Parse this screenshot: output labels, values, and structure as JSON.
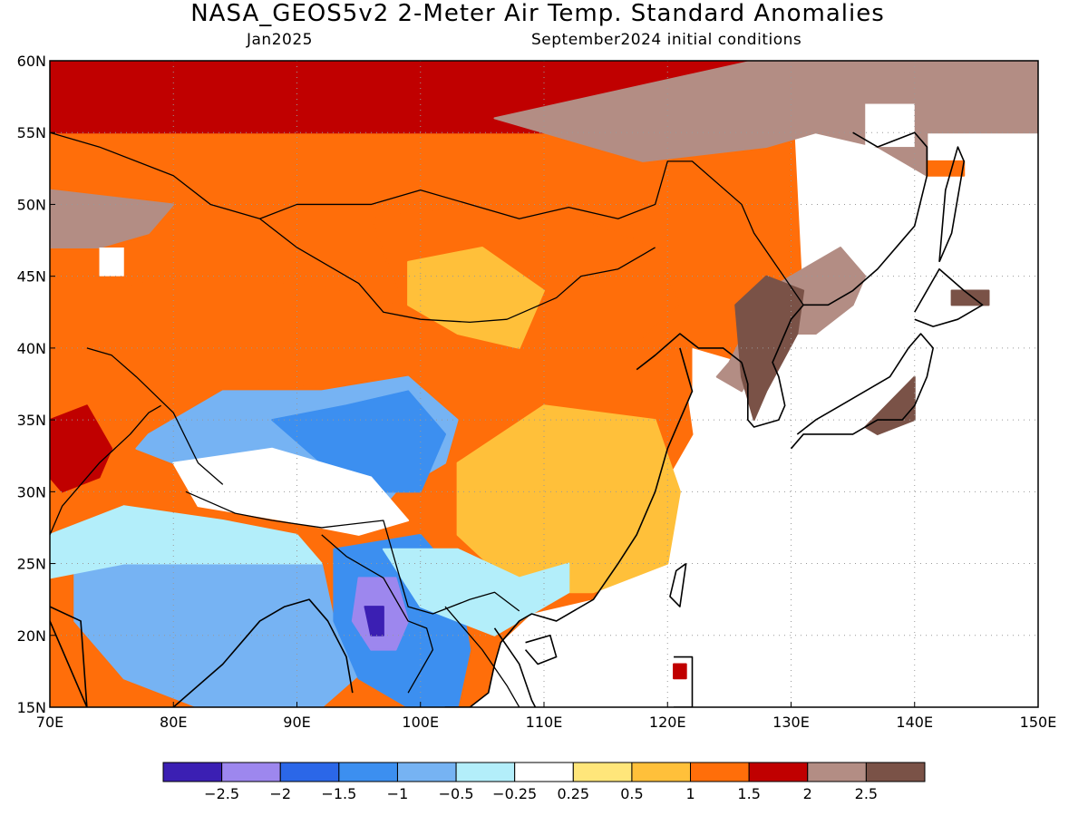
{
  "title": "NASA_GEOS5v2 2-Meter Air Temp. Standard Anomalies",
  "subtitle_left": "Jan2025",
  "subtitle_right": "September2024 initial conditions",
  "map": {
    "lon_range": [
      70,
      150
    ],
    "lat_range": [
      15,
      60
    ],
    "lon_ticks": [
      "70E",
      "80E",
      "90E",
      "100E",
      "110E",
      "120E",
      "130E",
      "140E",
      "150E"
    ],
    "lat_ticks": [
      "15N",
      "20N",
      "25N",
      "30N",
      "35N",
      "40N",
      "45N",
      "50N",
      "55N",
      "60N"
    ],
    "grid": true
  },
  "colorbar": {
    "colors": [
      "#3b1fb3",
      "#9d87ee",
      "#2b67e8",
      "#3c8ff0",
      "#76b3f3",
      "#b3eefa",
      "#ffffff",
      "#ffe67a",
      "#ffc03a",
      "#ff6e0a",
      "#c00000",
      "#b38d84",
      "#7a5247"
    ],
    "labels": [
      "-2.5",
      "-2",
      "-1.5",
      "-1",
      "-0.5",
      "-0.25",
      "0.25",
      "0.5",
      "1",
      "1.5",
      "2",
      "2.5"
    ]
  },
  "regions": [
    {
      "name": "far-north-warm",
      "cat": 10,
      "lon": [
        70,
        130,
        127,
        126,
        110,
        95,
        88,
        80,
        78,
        70
      ],
      "lat": [
        60,
        60,
        57.5,
        56,
        55,
        55,
        55,
        55,
        55,
        55
      ]
    },
    {
      "name": "northwest-cold-brown",
      "cat": 11,
      "lon": [
        70,
        80,
        78,
        74,
        70
      ],
      "lat": [
        51,
        50,
        48,
        47,
        47
      ]
    },
    {
      "name": "ne-brown-plateau",
      "cat": 11,
      "lon": [
        106,
        127,
        150,
        150,
        144,
        141,
        141,
        137,
        132,
        128,
        118
      ],
      "lat": [
        56,
        60,
        60,
        55,
        55,
        55,
        52,
        54,
        55,
        54,
        53
      ]
    },
    {
      "name": "manchuria-brown",
      "cat": 11,
      "lon": [
        125,
        128,
        134,
        136,
        135,
        132,
        129,
        126,
        124
      ],
      "lat": [
        39,
        44,
        47,
        45,
        43,
        41,
        41,
        37,
        38
      ]
    },
    {
      "name": "korea-dark-brown",
      "cat": 12,
      "lon": [
        125.5,
        128,
        131,
        130.5,
        128,
        127,
        126
      ],
      "lat": [
        43,
        45,
        44,
        41,
        37,
        35,
        38
      ]
    },
    {
      "name": "japan-dark-brown",
      "cat": 12,
      "lon": [
        136,
        140,
        140,
        137
      ],
      "lat": [
        34.5,
        38,
        35,
        34
      ]
    },
    {
      "name": "mongolia-orange",
      "cat": 9,
      "lon": [
        96,
        104,
        113,
        119,
        121,
        117,
        112,
        105,
        99
      ],
      "lat": [
        49,
        50,
        49,
        47,
        43,
        40,
        38,
        39,
        42
      ]
    },
    {
      "name": "central-asia-orange",
      "cat": 9,
      "lon": [
        70,
        85,
        94,
        103,
        108,
        112,
        112,
        103,
        94,
        86,
        78,
        72,
        70
      ],
      "lat": [
        44,
        45,
        44,
        42,
        44,
        41,
        36,
        35,
        37,
        38,
        38,
        38,
        38
      ]
    },
    {
      "name": "east-china-orange",
      "cat": 9,
      "lon": [
        110,
        121,
        122,
        120,
        117,
        113,
        110
      ],
      "lat": [
        40,
        40,
        34,
        31,
        30,
        30,
        33
      ]
    },
    {
      "name": "south-china-yellow",
      "cat": 8,
      "lon": [
        103,
        110,
        119,
        121,
        120,
        114,
        108,
        103
      ],
      "lat": [
        32,
        36,
        35,
        30,
        25,
        23,
        23,
        27
      ]
    },
    {
      "name": "mongolia-light",
      "cat": 8,
      "lon": [
        99,
        105,
        110,
        108,
        103,
        99
      ],
      "lat": [
        46,
        47,
        44,
        40,
        41,
        43
      ]
    },
    {
      "name": "tibet-cold",
      "cat": 4,
      "lon": [
        78,
        84,
        92,
        99,
        103,
        102,
        98,
        96,
        91,
        86,
        80,
        77
      ],
      "lat": [
        34,
        37,
        37,
        38,
        35,
        32,
        30,
        28,
        29,
        31,
        32,
        33
      ]
    },
    {
      "name": "tibet-deep-cold",
      "cat": 3,
      "lon": [
        88,
        94,
        99,
        102,
        100,
        96,
        92
      ],
      "lat": [
        35,
        36,
        37,
        34,
        30,
        30,
        32
      ]
    },
    {
      "name": "himalaya-white",
      "cat": 6,
      "lon": [
        80,
        88,
        96,
        99,
        95,
        89,
        82
      ],
      "lat": [
        32,
        33,
        31,
        28,
        27,
        28,
        29
      ]
    },
    {
      "name": "india-cold",
      "cat": 4,
      "lon": [
        72,
        80,
        88,
        92,
        93,
        96,
        92,
        88,
        82,
        76,
        72
      ],
      "lat": [
        25,
        27,
        27,
        25,
        21,
        18,
        15,
        15,
        15,
        17,
        21
      ]
    },
    {
      "name": "india-light",
      "cat": 5,
      "lon": [
        70,
        76,
        84,
        90,
        92,
        82,
        76,
        70
      ],
      "lat": [
        27,
        29,
        28,
        27,
        25,
        25,
        25,
        24
      ]
    },
    {
      "name": "se-asia-cold",
      "cat": 3,
      "lon": [
        93,
        100,
        103,
        104,
        103,
        99,
        95,
        93
      ],
      "lat": [
        26,
        27,
        24,
        19,
        15,
        15,
        17,
        21
      ]
    },
    {
      "name": "myanmar-violet",
      "cat": 1,
      "lon": [
        95,
        98,
        99,
        98,
        96,
        94.5
      ],
      "lat": [
        24,
        24,
        21,
        19,
        19,
        21
      ]
    },
    {
      "name": "myanmar-indigo",
      "cat": 0,
      "lon": [
        95.5,
        97,
        97,
        96
      ],
      "lat": [
        22,
        22,
        20,
        20
      ]
    },
    {
      "name": "south-lightblue",
      "cat": 5,
      "lon": [
        97,
        103,
        108,
        112,
        112,
        106,
        100
      ],
      "lat": [
        26,
        26,
        24,
        25,
        23,
        20,
        22
      ]
    },
    {
      "name": "pakistan-red",
      "cat": 10,
      "lon": [
        70,
        73,
        75,
        74,
        71,
        70
      ],
      "lat": [
        35,
        36,
        33,
        31,
        30,
        31
      ]
    },
    {
      "name": "taiwan-red",
      "cat": 10,
      "lon": [
        120.5,
        121.5,
        121.5,
        120.5
      ],
      "lat": [
        18,
        18,
        17,
        17
      ]
    },
    {
      "name": "sakhalin-orange",
      "cat": 9,
      "lon": [
        141,
        144,
        144,
        141
      ],
      "lat": [
        53,
        53,
        52,
        52
      ]
    },
    {
      "name": "hokkaido-brown",
      "cat": 12,
      "lon": [
        143,
        146,
        146,
        143
      ],
      "lat": [
        44,
        44,
        43,
        43
      ]
    }
  ],
  "no_data_boxes": [
    {
      "name": "nodata-lake-balkhash",
      "lon": [
        74,
        76
      ],
      "lat": [
        45,
        47
      ]
    },
    {
      "name": "nodata-manchuria",
      "lon": [
        136,
        140
      ],
      "lat": [
        54,
        57
      ]
    }
  ],
  "coastlines": [
    {
      "name": "china-coast",
      "lon": [
        121,
        122,
        121,
        120,
        119,
        117.5,
        116,
        114,
        111,
        109,
        108,
        106.5,
        106,
        105.5,
        104
      ],
      "lat": [
        40,
        37,
        35,
        33,
        30,
        27,
        25,
        22.5,
        21,
        21.5,
        21,
        19.5,
        18,
        16,
        15
      ]
    },
    {
      "name": "bohai-coast",
      "lon": [
        117.5,
        119,
        121,
        122.5,
        124.5,
        126
      ],
      "lat": [
        38.5,
        39.5,
        41,
        40,
        40,
        39
      ]
    },
    {
      "name": "korea-coast",
      "lon": [
        126,
        126.5,
        126.5,
        127,
        129,
        129.5,
        129,
        128.5,
        130,
        131
      ],
      "lat": [
        39,
        37.5,
        35,
        34.5,
        35,
        36,
        38,
        39,
        42,
        43
      ]
    },
    {
      "name": "russia-coast",
      "lon": [
        131,
        133,
        135,
        137,
        139,
        140,
        141,
        141,
        140,
        137,
        135
      ],
      "lat": [
        43,
        43,
        44,
        45.5,
        47.5,
        48.5,
        52,
        54,
        55,
        54,
        55
      ]
    },
    {
      "name": "honshu",
      "lon": [
        130,
        131,
        133,
        135,
        137,
        139,
        140,
        141,
        141.5,
        140.5,
        139.5,
        138,
        136,
        134,
        132,
        130.5
      ],
      "lat": [
        33,
        34,
        34,
        34,
        35,
        35,
        36,
        38,
        40,
        41,
        40,
        38,
        37,
        36,
        35,
        34
      ]
    },
    {
      "name": "hokkaido",
      "lon": [
        140,
        141.5,
        143.5,
        145.5,
        144,
        142,
        140
      ],
      "lat": [
        42,
        41.5,
        42,
        43,
        44,
        45.5,
        42.5
      ]
    },
    {
      "name": "sakhalin",
      "lon": [
        142,
        143,
        144,
        143.5,
        142.5,
        142
      ],
      "lat": [
        46,
        48,
        53,
        54,
        51,
        46
      ]
    },
    {
      "name": "taiwan",
      "lon": [
        121.5,
        121,
        120.2,
        120.7,
        121.5
      ],
      "lat": [
        25,
        22,
        22.7,
        24.5,
        25
      ]
    },
    {
      "name": "hainan",
      "lon": [
        108.5,
        110.5,
        111,
        109.5,
        108.5
      ],
      "lat": [
        19.5,
        20,
        18.5,
        18,
        19
      ]
    },
    {
      "name": "luzon",
      "lon": [
        120.5,
        122,
        122,
        120.5
      ],
      "lat": [
        18.5,
        18.5,
        15,
        15
      ]
    },
    {
      "name": "india-west",
      "lon": [
        70,
        72.5,
        73,
        70
      ],
      "lat": [
        22,
        21,
        15,
        21
      ]
    },
    {
      "name": "bay-of-bengal",
      "lon": [
        80,
        84,
        87,
        89,
        91,
        92.5,
        94,
        94.5
      ],
      "lat": [
        15,
        18,
        21,
        22,
        22.5,
        21,
        18.5,
        16
      ]
    },
    {
      "name": "vietnam-coast",
      "lon": [
        106,
        108,
        109,
        109.3
      ],
      "lat": [
        20.5,
        18,
        15.5,
        15
      ]
    },
    {
      "name": "thai-gulf",
      "lon": [
        100,
        100.5,
        102,
        104
      ],
      "lat": [
        15,
        13.5,
        15,
        15
      ]
    }
  ],
  "borders": [
    {
      "name": "russia-china-kaz",
      "lon": [
        70,
        74,
        80,
        83,
        87,
        90,
        96,
        100,
        108,
        112,
        116,
        119,
        120,
        122,
        126,
        127,
        131
      ],
      "lat": [
        55,
        54,
        52,
        50,
        49,
        50,
        50,
        51,
        49,
        49.8,
        49,
        50,
        53,
        53,
        50,
        48,
        43
      ]
    },
    {
      "name": "mongolia-south",
      "lon": [
        87,
        90,
        95,
        97,
        100,
        104,
        107,
        111,
        113,
        116,
        118,
        119
      ],
      "lat": [
        49,
        47,
        44.5,
        42.5,
        42,
        41.8,
        42,
        43.5,
        45,
        45.5,
        46.5,
        47
      ]
    },
    {
      "name": "china-west",
      "lon": [
        73,
        75,
        77,
        80,
        82,
        84
      ],
      "lat": [
        40,
        39.5,
        38,
        35.5,
        32,
        30.5
      ]
    },
    {
      "name": "china-south",
      "lon": [
        81,
        85,
        88,
        92,
        97,
        99,
        101,
        104,
        106,
        108
      ],
      "lat": [
        30,
        28.5,
        28,
        27.5,
        28,
        22,
        21.5,
        22.5,
        23,
        21.7
      ]
    },
    {
      "name": "india-border",
      "lon": [
        70,
        71,
        74,
        76.5,
        78,
        79
      ],
      "lat": [
        27,
        29,
        32,
        34,
        35.5,
        36
      ]
    },
    {
      "name": "myanmar-border",
      "lon": [
        92,
        94,
        97,
        99,
        100.5,
        101,
        99
      ],
      "lat": [
        27,
        25.5,
        24,
        21,
        20.5,
        19,
        16
      ]
    },
    {
      "name": "laos-vietnam",
      "lon": [
        102,
        103.5,
        105,
        107,
        108
      ],
      "lat": [
        22,
        20.5,
        19,
        16.5,
        15
      ]
    }
  ]
}
